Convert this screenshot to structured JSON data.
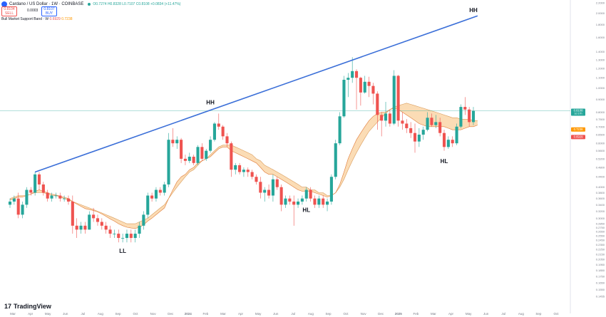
{
  "header": {
    "title": "Cardano / US Dollar · 1W · COINBASE",
    "ohlc": "O0.7274 H0.8328 L0.7107 C0.8108 +0.0834 (+11.47%)",
    "sell_price": "0.8104",
    "sell_label": "SELL",
    "spread": "0.0003",
    "buy_price": "0.8107",
    "buy_label": "BUY"
  },
  "indicator": {
    "name": "Bull Market Support Band · W",
    "value1": "0.6929",
    "value2": "0.7238"
  },
  "branding": {
    "name": "TradingView"
  },
  "colors": {
    "up": "#26a69a",
    "down": "#ef5350",
    "trendline": "#3b6fd8",
    "band_fill": "#f9c98d",
    "band_edge_fast": "#e07b39",
    "band_edge_slow": "#d99b5a",
    "current_line": "#26a69a",
    "text": "#131722",
    "axis_text": "#787b86"
  },
  "chart_data": {
    "type": "candlestick",
    "symbol": "ADAUSD",
    "interval": "1W",
    "y_scale": "log",
    "ylim": [
      0.14,
      2.2
    ],
    "y_ticks": [
      0.1455,
      0.155,
      0.165,
      0.175,
      0.185,
      0.195,
      0.205,
      0.215,
      0.225,
      0.235,
      0.245,
      0.255,
      0.265,
      0.275,
      0.285,
      0.3,
      0.32,
      0.34,
      0.36,
      0.38,
      0.4,
      0.44,
      0.48,
      0.52,
      0.56,
      0.6,
      0.65,
      0.7,
      0.75,
      0.8,
      0.9,
      1.0,
      1.1,
      1.2,
      1.3,
      1.4,
      1.6,
      1.8,
      2.0,
      2.2
    ],
    "y_tick_labels": [
      "0.1455",
      "0.1550",
      "0.1650",
      "0.1750",
      "0.1850",
      "0.1950",
      "0.2050",
      "0.2150",
      "0.2250",
      "0.2350",
      "0.2450",
      "0.2550",
      "0.2650",
      "0.2750",
      "0.2850",
      "0.3000",
      "0.3200",
      "0.3400",
      "0.3600",
      "0.3800",
      "0.4000",
      "0.4400",
      "0.4800",
      "0.5200",
      "0.5600",
      "0.6000",
      "0.6500",
      "0.7000",
      "0.7500",
      "0.8000",
      "0.9000",
      "1.0000",
      "1.1000",
      "1.2000",
      "1.3000",
      "1.4000",
      "1.6000",
      "1.8000",
      "2.0000",
      "2.2000"
    ],
    "x_labels": [
      "Mar",
      "Apr",
      "May",
      "Jun",
      "Jul",
      "Aug",
      "Sep",
      "Oct",
      "Nov",
      "Dec",
      "2024",
      "Feb",
      "Mar",
      "Apr",
      "May",
      "Jun",
      "Jul",
      "Aug",
      "Sep",
      "Oct",
      "Nov",
      "Dec",
      "2025",
      "Feb",
      "Mar",
      "Apr",
      "May",
      "Jun",
      "Jul",
      "Aug",
      "Sep",
      "Oct"
    ],
    "candles": [
      [
        0.34,
        0.36,
        0.33,
        0.35
      ],
      [
        0.35,
        0.37,
        0.34,
        0.36
      ],
      [
        0.36,
        0.38,
        0.3,
        0.31
      ],
      [
        0.31,
        0.35,
        0.3,
        0.34
      ],
      [
        0.34,
        0.4,
        0.33,
        0.39
      ],
      [
        0.39,
        0.4,
        0.37,
        0.38
      ],
      [
        0.38,
        0.46,
        0.37,
        0.45
      ],
      [
        0.45,
        0.46,
        0.39,
        0.41
      ],
      [
        0.41,
        0.42,
        0.37,
        0.38
      ],
      [
        0.38,
        0.39,
        0.35,
        0.36
      ],
      [
        0.36,
        0.38,
        0.35,
        0.37
      ],
      [
        0.37,
        0.38,
        0.36,
        0.37
      ],
      [
        0.37,
        0.38,
        0.35,
        0.36
      ],
      [
        0.36,
        0.37,
        0.35,
        0.36
      ],
      [
        0.36,
        0.37,
        0.34,
        0.35
      ],
      [
        0.35,
        0.37,
        0.26,
        0.28
      ],
      [
        0.28,
        0.3,
        0.25,
        0.27
      ],
      [
        0.27,
        0.29,
        0.26,
        0.28
      ],
      [
        0.28,
        0.29,
        0.26,
        0.27
      ],
      [
        0.27,
        0.32,
        0.27,
        0.31
      ],
      [
        0.31,
        0.33,
        0.29,
        0.3
      ],
      [
        0.3,
        0.31,
        0.28,
        0.29
      ],
      [
        0.29,
        0.3,
        0.27,
        0.28
      ],
      [
        0.28,
        0.29,
        0.26,
        0.27
      ],
      [
        0.27,
        0.28,
        0.25,
        0.26
      ],
      [
        0.26,
        0.27,
        0.25,
        0.26
      ],
      [
        0.26,
        0.27,
        0.24,
        0.25
      ],
      [
        0.25,
        0.26,
        0.24,
        0.25
      ],
      [
        0.25,
        0.27,
        0.24,
        0.26
      ],
      [
        0.26,
        0.27,
        0.24,
        0.25
      ],
      [
        0.25,
        0.27,
        0.24,
        0.26
      ],
      [
        0.26,
        0.29,
        0.25,
        0.28
      ],
      [
        0.28,
        0.32,
        0.27,
        0.31
      ],
      [
        0.31,
        0.38,
        0.3,
        0.37
      ],
      [
        0.37,
        0.38,
        0.35,
        0.36
      ],
      [
        0.36,
        0.4,
        0.35,
        0.39
      ],
      [
        0.39,
        0.4,
        0.37,
        0.38
      ],
      [
        0.38,
        0.42,
        0.37,
        0.41
      ],
      [
        0.41,
        0.66,
        0.4,
        0.62
      ],
      [
        0.62,
        0.69,
        0.58,
        0.6
      ],
      [
        0.6,
        0.64,
        0.57,
        0.62
      ],
      [
        0.62,
        0.63,
        0.5,
        0.52
      ],
      [
        0.52,
        0.54,
        0.49,
        0.51
      ],
      [
        0.51,
        0.55,
        0.5,
        0.53
      ],
      [
        0.53,
        0.54,
        0.49,
        0.5
      ],
      [
        0.5,
        0.59,
        0.49,
        0.58
      ],
      [
        0.58,
        0.6,
        0.51,
        0.52
      ],
      [
        0.52,
        0.57,
        0.51,
        0.56
      ],
      [
        0.56,
        0.64,
        0.55,
        0.62
      ],
      [
        0.62,
        0.73,
        0.61,
        0.72
      ],
      [
        0.72,
        0.79,
        0.68,
        0.7
      ],
      [
        0.7,
        0.71,
        0.62,
        0.64
      ],
      [
        0.64,
        0.66,
        0.58,
        0.6
      ],
      [
        0.6,
        0.61,
        0.44,
        0.47
      ],
      [
        0.47,
        0.5,
        0.45,
        0.49
      ],
      [
        0.49,
        0.5,
        0.45,
        0.46
      ],
      [
        0.46,
        0.48,
        0.44,
        0.47
      ],
      [
        0.47,
        0.48,
        0.44,
        0.46
      ],
      [
        0.46,
        0.47,
        0.43,
        0.44
      ],
      [
        0.44,
        0.45,
        0.41,
        0.42
      ],
      [
        0.42,
        0.44,
        0.36,
        0.38
      ],
      [
        0.38,
        0.4,
        0.35,
        0.39
      ],
      [
        0.39,
        0.41,
        0.36,
        0.37
      ],
      [
        0.37,
        0.45,
        0.35,
        0.43
      ],
      [
        0.43,
        0.44,
        0.39,
        0.4
      ],
      [
        0.4,
        0.41,
        0.32,
        0.34
      ],
      [
        0.34,
        0.37,
        0.33,
        0.36
      ],
      [
        0.36,
        0.37,
        0.34,
        0.35
      ],
      [
        0.35,
        0.37,
        0.28,
        0.34
      ],
      [
        0.34,
        0.36,
        0.33,
        0.35
      ],
      [
        0.35,
        0.37,
        0.34,
        0.36
      ],
      [
        0.36,
        0.4,
        0.35,
        0.39
      ],
      [
        0.39,
        0.4,
        0.35,
        0.36
      ],
      [
        0.36,
        0.37,
        0.33,
        0.34
      ],
      [
        0.34,
        0.37,
        0.33,
        0.36
      ],
      [
        0.36,
        0.37,
        0.33,
        0.34
      ],
      [
        0.34,
        0.36,
        0.32,
        0.35
      ],
      [
        0.35,
        0.45,
        0.34,
        0.44
      ],
      [
        0.44,
        0.62,
        0.43,
        0.6
      ],
      [
        0.6,
        0.8,
        0.59,
        0.77
      ],
      [
        0.77,
        1.12,
        0.76,
        1.08
      ],
      [
        1.08,
        1.15,
        0.92,
        1.1
      ],
      [
        1.1,
        1.33,
        1.05,
        1.17
      ],
      [
        1.17,
        1.19,
        0.82,
        1.1
      ],
      [
        1.1,
        1.11,
        0.85,
        0.96
      ],
      [
        0.96,
        1.12,
        0.95,
        1.06
      ],
      [
        1.06,
        1.11,
        0.92,
        1.02
      ],
      [
        1.02,
        1.05,
        0.86,
        0.95
      ],
      [
        0.95,
        0.97,
        0.68,
        0.78
      ],
      [
        0.78,
        0.8,
        0.64,
        0.74
      ],
      [
        0.74,
        0.88,
        0.7,
        0.79
      ],
      [
        0.79,
        0.82,
        0.7,
        0.72
      ],
      [
        0.72,
        1.18,
        0.71,
        1.12
      ],
      [
        1.12,
        1.13,
        0.7,
        0.74
      ],
      [
        0.74,
        0.8,
        0.68,
        0.72
      ],
      [
        0.72,
        0.75,
        0.66,
        0.69
      ],
      [
        0.69,
        0.73,
        0.63,
        0.66
      ],
      [
        0.66,
        0.72,
        0.55,
        0.61
      ],
      [
        0.61,
        0.69,
        0.58,
        0.65
      ],
      [
        0.65,
        0.7,
        0.62,
        0.68
      ],
      [
        0.68,
        0.8,
        0.67,
        0.76
      ],
      [
        0.76,
        0.79,
        0.7,
        0.71
      ],
      [
        0.71,
        0.78,
        0.69,
        0.73
      ],
      [
        0.73,
        0.76,
        0.64,
        0.66
      ],
      [
        0.66,
        0.68,
        0.56,
        0.58
      ],
      [
        0.58,
        0.64,
        0.57,
        0.62
      ],
      [
        0.62,
        0.64,
        0.58,
        0.6
      ],
      [
        0.6,
        0.72,
        0.59,
        0.7
      ],
      [
        0.7,
        0.86,
        0.69,
        0.84
      ],
      [
        0.84,
        0.92,
        0.78,
        0.82
      ],
      [
        0.82,
        0.84,
        0.7,
        0.73
      ],
      [
        0.73,
        0.84,
        0.71,
        0.81
      ]
    ],
    "band": {
      "sma20": [
        0.36,
        0.365,
        0.37,
        0.37,
        0.37,
        0.375,
        0.38,
        0.38,
        0.38,
        0.375,
        0.37,
        0.37,
        0.365,
        0.36,
        0.355,
        0.35,
        0.345,
        0.34,
        0.335,
        0.33,
        0.325,
        0.32,
        0.315,
        0.31,
        0.305,
        0.3,
        0.295,
        0.29,
        0.285,
        0.285,
        0.285,
        0.29,
        0.295,
        0.3,
        0.31,
        0.32,
        0.33,
        0.34,
        0.36,
        0.38,
        0.4,
        0.42,
        0.44,
        0.46,
        0.47,
        0.49,
        0.51,
        0.52,
        0.54,
        0.56,
        0.58,
        0.59,
        0.59,
        0.59,
        0.58,
        0.57,
        0.56,
        0.55,
        0.54,
        0.52,
        0.51,
        0.49,
        0.48,
        0.47,
        0.46,
        0.45,
        0.44,
        0.43,
        0.42,
        0.41,
        0.4,
        0.4,
        0.39,
        0.39,
        0.38,
        0.38,
        0.37,
        0.37,
        0.38,
        0.4,
        0.43,
        0.47,
        0.51,
        0.55,
        0.59,
        0.63,
        0.67,
        0.7,
        0.73,
        0.76,
        0.79,
        0.82,
        0.84,
        0.85,
        0.86,
        0.87,
        0.86,
        0.85,
        0.84,
        0.83,
        0.82,
        0.81,
        0.8,
        0.79,
        0.78,
        0.77,
        0.76,
        0.76,
        0.75,
        0.75,
        0.75,
        0.74,
        0.74
      ],
      "ema21": [
        0.355,
        0.36,
        0.365,
        0.365,
        0.37,
        0.375,
        0.385,
        0.39,
        0.385,
        0.38,
        0.375,
        0.372,
        0.368,
        0.364,
        0.36,
        0.35,
        0.342,
        0.335,
        0.328,
        0.325,
        0.322,
        0.318,
        0.312,
        0.305,
        0.298,
        0.292,
        0.285,
        0.28,
        0.276,
        0.274,
        0.273,
        0.276,
        0.282,
        0.292,
        0.3,
        0.31,
        0.32,
        0.33,
        0.36,
        0.39,
        0.42,
        0.44,
        0.45,
        0.47,
        0.48,
        0.5,
        0.51,
        0.52,
        0.53,
        0.55,
        0.57,
        0.58,
        0.58,
        0.56,
        0.55,
        0.54,
        0.53,
        0.52,
        0.51,
        0.5,
        0.48,
        0.46,
        0.45,
        0.45,
        0.44,
        0.43,
        0.42,
        0.41,
        0.4,
        0.39,
        0.385,
        0.385,
        0.385,
        0.38,
        0.375,
        0.37,
        0.365,
        0.37,
        0.38,
        0.41,
        0.46,
        0.52,
        0.57,
        0.62,
        0.66,
        0.7,
        0.74,
        0.77,
        0.79,
        0.8,
        0.8,
        0.82,
        0.83,
        0.82,
        0.8,
        0.78,
        0.76,
        0.74,
        0.72,
        0.71,
        0.7,
        0.7,
        0.7,
        0.7,
        0.7,
        0.69,
        0.68,
        0.68,
        0.68,
        0.69,
        0.7,
        0.7,
        0.71
      ]
    },
    "current_price": 0.8108,
    "price_labels": [
      {
        "value": 0.8108,
        "text": "0.8108",
        "sub": "1d 17h",
        "color": "#26a69a"
      },
      {
        "value": 0.7238,
        "text": "0.7238",
        "color": "#ff9800"
      },
      {
        "value": 0.6929,
        "text": "0.6929",
        "color": "#ef5350"
      }
    ],
    "annotations": [
      {
        "text": "HH",
        "candle": 111,
        "value": 2.02
      },
      {
        "text": "HH",
        "candle": 48,
        "value": 0.86
      },
      {
        "text": "LL",
        "candle": 27,
        "value": 0.218
      },
      {
        "text": "HL",
        "candle": 71,
        "value": 0.318
      },
      {
        "text": "HL",
        "candle": 104,
        "value": 0.5
      }
    ],
    "trendline": {
      "from": {
        "candle": 6,
        "value": 0.46
      },
      "to": {
        "candle": 112,
        "value": 1.95
      }
    },
    "grid": false
  }
}
